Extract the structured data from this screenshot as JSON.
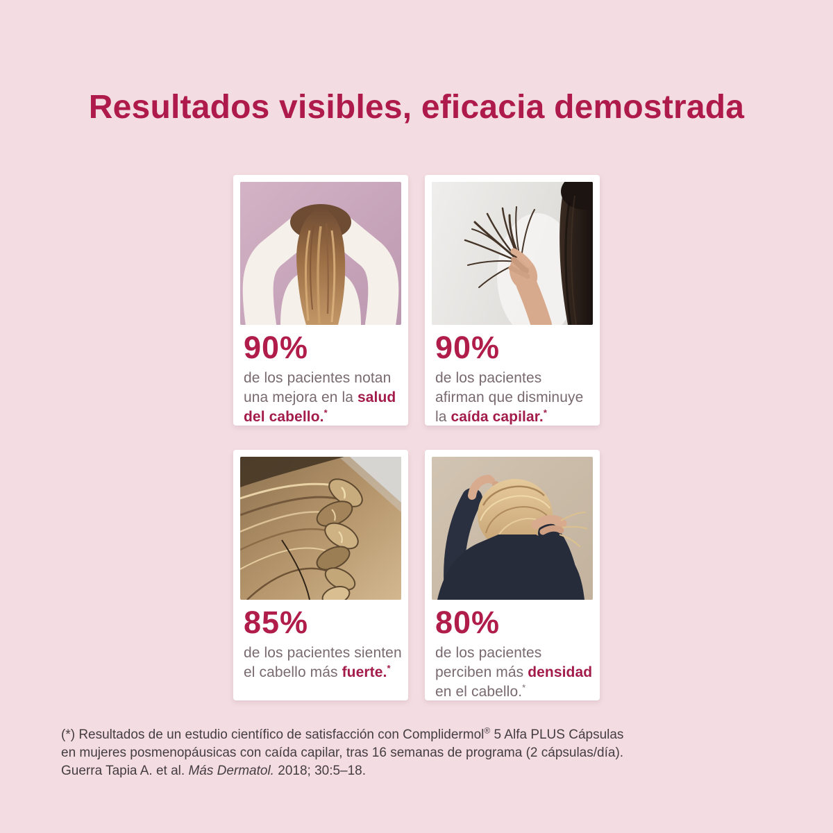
{
  "page": {
    "title": "Resultados visibles, eficacia demostrada",
    "background_color": "#f3dce2",
    "accent_color": "#ae1a4b",
    "percent_color": "#b01d4b",
    "body_text_color": "#786a70",
    "highlight_color": "#a31b4a",
    "card_color": "#ffffff"
  },
  "cards": [
    {
      "percent": "90%",
      "photo": "woman-hands-in-long-brown-hair-photo",
      "segments": [
        {
          "text": "de los pacientes notan una mejora en la ",
          "bold": false
        },
        {
          "text": "salud del cabello.",
          "bold": true
        },
        {
          "text": "*",
          "bold": true,
          "sup": true
        }
      ]
    },
    {
      "percent": "90%",
      "photo": "hand-holding-damaged-hair-ends-photo",
      "segments": [
        {
          "text": "de los pacientes afirman que disminuye la ",
          "bold": false
        },
        {
          "text": "caída capilar.",
          "bold": true
        },
        {
          "text": "*",
          "bold": true,
          "sup": true
        }
      ]
    },
    {
      "percent": "85%",
      "photo": "braided-blonde-hair-closeup-photo",
      "segments": [
        {
          "text": "de los pacientes sienten el cabello más ",
          "bold": false
        },
        {
          "text": "fuerte.",
          "bold": true
        },
        {
          "text": "*",
          "bold": true,
          "sup": true
        }
      ]
    },
    {
      "percent": "80%",
      "photo": "blonde-woman-hands-in-updo-photo",
      "segments": [
        {
          "text": "de los pacientes perciben más ",
          "bold": false
        },
        {
          "text": "densidad",
          "bold": true
        },
        {
          "text": " en el cabello.",
          "bold": false
        },
        {
          "text": "*",
          "bold": false,
          "sup": true
        }
      ]
    }
  ],
  "footnote": {
    "line1_before_reg": "(*) Resultados de un estudio científico de satisfacción con Complidermol",
    "line1_registered": "®",
    "line1_after_reg": " 5 Alfa PLUS Cápsulas",
    "line2": "en mujeres posmenopáusicas con caída capilar, tras 16 semanas de programa (2 cápsulas/día).",
    "line3_before_italic": "Guerra Tapia A. et al. ",
    "line3_italic": "Más Dermatol.",
    "line3_after_italic": " 2018; 30:5–18."
  }
}
